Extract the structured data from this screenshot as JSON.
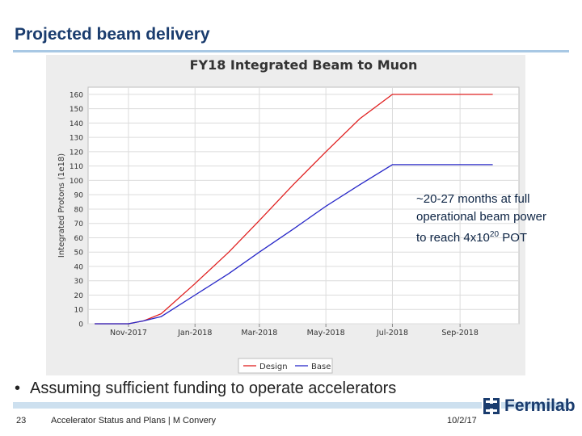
{
  "slide": {
    "title": "Projected beam delivery",
    "annotation_line1": "~20-27 months at full",
    "annotation_line2": "operational beam power",
    "annotation_prefix": "to reach 4x10",
    "annotation_exp": "20",
    "annotation_suffix": " POT",
    "bullet": "Assuming sufficient funding to operate accelerators",
    "footer_page": "23",
    "footer_text": "Accelerator Status and Plans | M Convery",
    "footer_date": "10/2/17",
    "logo_text": "Fermilab"
  },
  "colors": {
    "title": "#1a3c6e",
    "design": "#e02020",
    "base": "#2828c8"
  },
  "chart_data": {
    "type": "line",
    "title": "FY18 Integrated Beam to Muon",
    "ylabel": "Integrated Protons (1e18)",
    "xlabel": "",
    "ylim": [
      0,
      165
    ],
    "yticks": [
      0,
      10,
      20,
      30,
      40,
      50,
      60,
      70,
      80,
      90,
      100,
      110,
      120,
      130,
      140,
      150,
      160
    ],
    "xlim": [
      "2017-09-25",
      "2018-10-25"
    ],
    "xticks": [
      {
        "date": "2017-11-01",
        "label": "Nov-2017"
      },
      {
        "date": "2018-01-01",
        "label": "Jan-2018"
      },
      {
        "date": "2018-03-01",
        "label": "Mar-2018"
      },
      {
        "date": "2018-05-01",
        "label": "May-2018"
      },
      {
        "date": "2018-07-01",
        "label": "Jul-2018"
      },
      {
        "date": "2018-09-01",
        "label": "Sep-2018"
      }
    ],
    "grid": true,
    "legend": "bottom",
    "series": [
      {
        "name": "Design",
        "color": "#e02020",
        "points": [
          [
            "2017-10-01",
            0
          ],
          [
            "2017-11-01",
            0
          ],
          [
            "2017-11-15",
            2
          ],
          [
            "2017-12-01",
            7
          ],
          [
            "2018-01-01",
            28
          ],
          [
            "2018-02-01",
            50
          ],
          [
            "2018-03-01",
            72
          ],
          [
            "2018-04-01",
            97
          ],
          [
            "2018-05-01",
            120
          ],
          [
            "2018-06-01",
            143
          ],
          [
            "2018-07-01",
            160
          ],
          [
            "2018-10-01",
            160
          ]
        ]
      },
      {
        "name": "Base",
        "color": "#2828c8",
        "points": [
          [
            "2017-10-01",
            0
          ],
          [
            "2017-11-01",
            0
          ],
          [
            "2017-11-15",
            2
          ],
          [
            "2017-12-01",
            5
          ],
          [
            "2018-01-01",
            20
          ],
          [
            "2018-02-01",
            35
          ],
          [
            "2018-03-01",
            50
          ],
          [
            "2018-04-01",
            66
          ],
          [
            "2018-05-01",
            82
          ],
          [
            "2018-06-01",
            97
          ],
          [
            "2018-07-01",
            111
          ],
          [
            "2018-10-01",
            111
          ]
        ]
      }
    ]
  }
}
